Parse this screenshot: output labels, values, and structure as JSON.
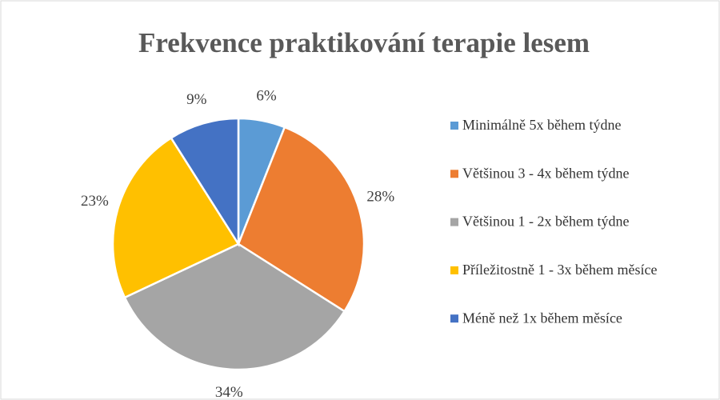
{
  "chart_data": {
    "type": "pie",
    "title": "Frekvence praktikování terapie lesem",
    "categories": [
      "Minimálně 5x během týdne",
      "Většinou 3 - 4x během týdne",
      "Většinou 1 - 2x během týdne",
      "Příležitostně 1 - 3x během měsíce",
      "Méně než 1x během měsíce"
    ],
    "values": [
      6,
      28,
      34,
      23,
      9
    ],
    "value_labels": [
      "6%",
      "28%",
      "34%",
      "23%",
      "9%"
    ],
    "colors": [
      "#5b9bd5",
      "#ed7d31",
      "#a5a5a5",
      "#ffc000",
      "#4472c4"
    ],
    "legend": "right"
  }
}
